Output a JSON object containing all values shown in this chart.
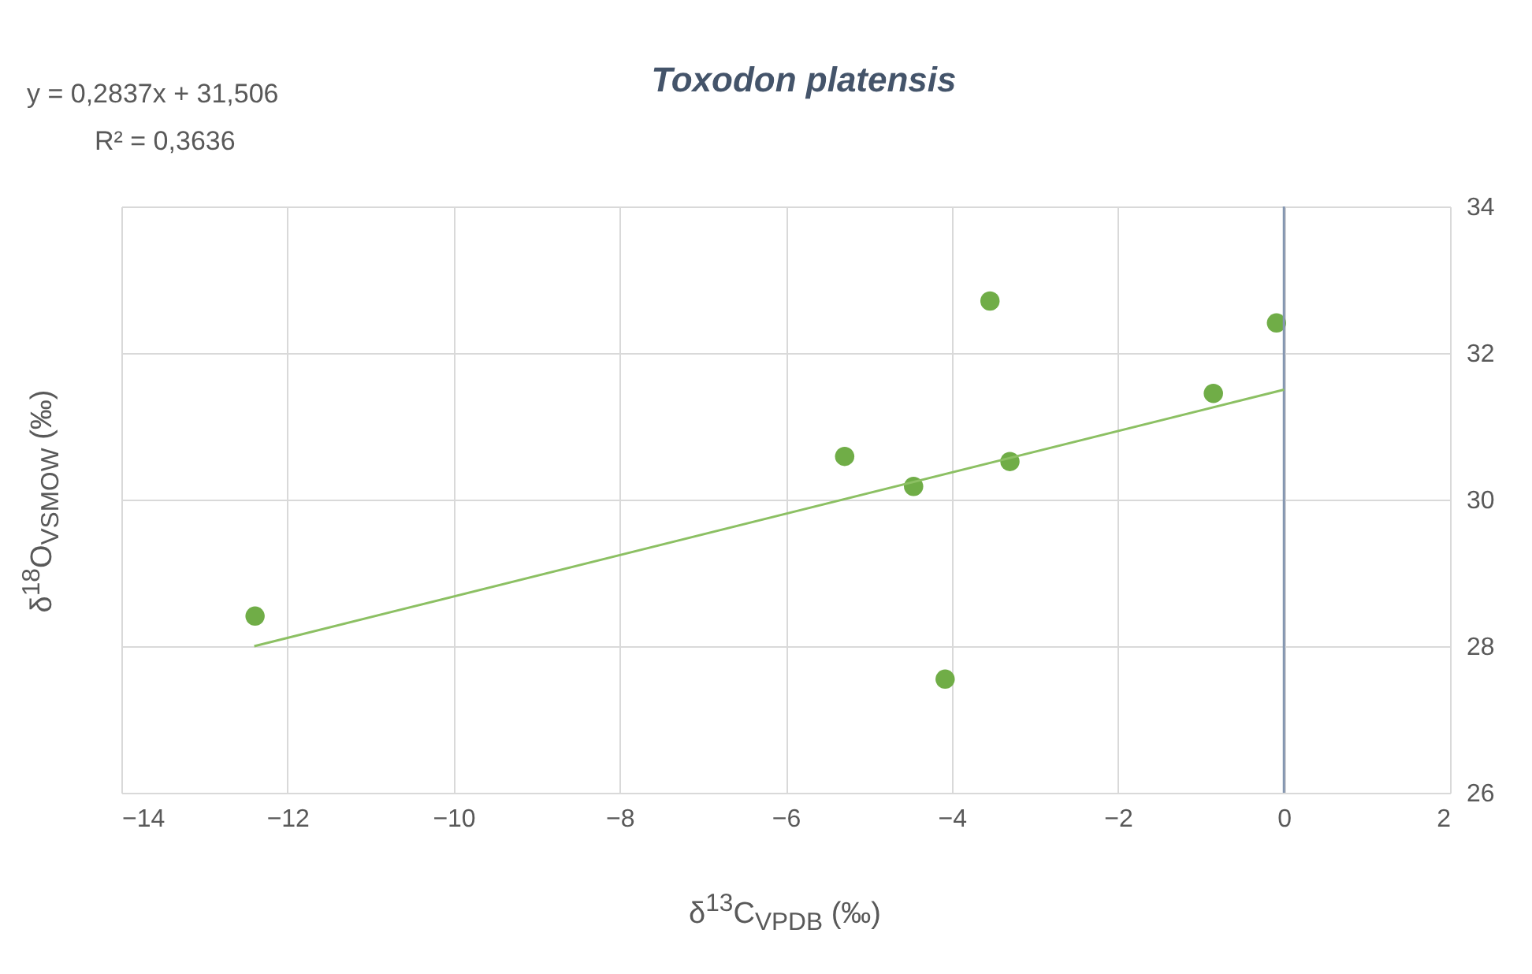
{
  "chart_data": {
    "type": "scatter",
    "title": "Toxodon platensis",
    "xlabel": "δ$^{13}$C$_{VPDB}$ (‰)",
    "ylabel": "δ$^{18}$O$_{VSMOW}$ (‰)",
    "annotations": [
      "y = 0,2837x + 31,506",
      "R² = 0,3636"
    ],
    "x": [
      -12.39,
      -4.08,
      -4.46,
      -5.29,
      -3.54,
      -3.3,
      -0.85,
      -0.09
    ],
    "series": [
      {
        "color": "#70ad47",
        "marker": "circle",
        "values": [
          28.41,
          27.55,
          30.18,
          30.59,
          32.71,
          30.52,
          31.45,
          32.41
        ]
      },
      {
        "type": "line",
        "color": "#8cc063",
        "marker": "none",
        "x": [
          -12.4,
          0
        ],
        "values": [
          28.0,
          31.5
        ]
      }
    ],
    "xlim": [
      -14,
      2
    ],
    "xticks": [
      -14,
      -12,
      -10,
      -8,
      -6,
      -4,
      -2,
      0,
      2
    ],
    "ylim": [
      26,
      34
    ],
    "yticks": [
      26,
      28,
      30,
      32,
      34
    ],
    "ref_lines": [
      {
        "axis": "x",
        "value": 0,
        "color": "#8496b0"
      }
    ],
    "grid": true,
    "line_style": "solid"
  }
}
